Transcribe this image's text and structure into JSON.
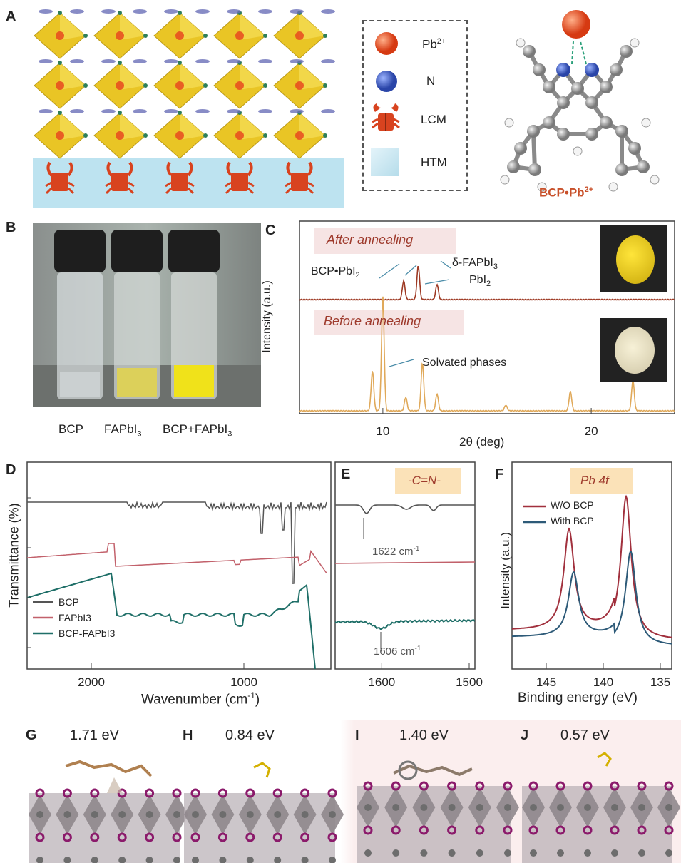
{
  "panels": {
    "A": "A",
    "B": "B",
    "C": "C",
    "D": "D",
    "E": "E",
    "F": "F",
    "G": "G",
    "H": "H",
    "I": "I",
    "J": "J"
  },
  "panelA": {
    "legend": [
      "Pb",
      "N",
      "LCM",
      "HTM"
    ],
    "pb_sup": "2+",
    "complex_label": "BCP•Pb",
    "complex_sup": "2+",
    "colors": {
      "pb": "#e8491e",
      "n": "#3a5bb8",
      "octahedra": "#e8c21a",
      "htm": "#bde3f0",
      "crab": "#d8431f"
    }
  },
  "panelB": {
    "vial_labels": [
      "BCP",
      "FAPbI",
      "BCP+FAPbI"
    ],
    "vial_sub": "3",
    "colors": {
      "clear": "#d9dee0",
      "faint_yellow": "#e3d44a",
      "yellow": "#f0e21a"
    }
  },
  "panelC": {
    "top_tag": "After annealing",
    "bottom_tag": "Before annealing",
    "ann_bcp": "BCP•PbI",
    "ann_bcp_sub": "2",
    "ann_delta": "δ-FAPbI",
    "ann_delta_sub": "3",
    "ann_pbi": "PbI",
    "ann_pbi_sub": "2",
    "ann_solv": "Solvated phases",
    "ylabel": "Intensity (a.u.)",
    "xlabel": "2θ (deg)",
    "xticks": [
      "10",
      "20"
    ]
  },
  "chart_data": [
    {
      "type": "line",
      "panel": "C",
      "xlabel": "2θ (deg)",
      "ylabel": "Intensity (a.u.)",
      "xlim": [
        6.0,
        24.0
      ],
      "series": [
        {
          "name": "After annealing",
          "color": "#9e3a24",
          "peaks": [
            [
              11.0,
              0.55
            ],
            [
              11.7,
              1.0
            ],
            [
              12.6,
              0.45
            ]
          ]
        },
        {
          "name": "Before annealing",
          "color": "#e0a95a",
          "peaks": [
            [
              9.5,
              0.35
            ],
            [
              10.0,
              1.0
            ],
            [
              11.1,
              0.12
            ],
            [
              11.9,
              0.42
            ],
            [
              12.6,
              0.15
            ],
            [
              15.9,
              0.05
            ],
            [
              19.0,
              0.17
            ],
            [
              22.0,
              0.27
            ]
          ]
        }
      ]
    },
    {
      "type": "line",
      "panel": "D",
      "xlabel": "Wavenumber (cm-1)",
      "ylabel": "Transmittance (%)",
      "xticks": [
        "2000",
        "1000"
      ],
      "series": [
        {
          "name": "BCP",
          "color": "#555555"
        },
        {
          "name": "FAPbI3",
          "color": "#c2616b"
        },
        {
          "name": "BCP-FAPbI3",
          "color": "#1f6f68"
        }
      ]
    },
    {
      "type": "line",
      "panel": "E",
      "xlim": [
        1650,
        1500
      ],
      "xticks": [
        "1600",
        "1500"
      ],
      "annotations": [
        "1622 cm-1",
        "1606 cm-1"
      ]
    },
    {
      "type": "line",
      "panel": "F",
      "xlabel": "Binding energy (eV)",
      "ylabel": "Intensity (a.u.)",
      "xticks": [
        "145",
        "140",
        "135"
      ],
      "series": [
        {
          "name": "W/O BCP",
          "color": "#a1303d",
          "peaks": [
            [
              143.0,
              0.7
            ],
            [
              138.0,
              1.0
            ]
          ]
        },
        {
          "name": "With BCP",
          "color": "#2d5a78",
          "peaks": [
            [
              142.6,
              0.45
            ],
            [
              137.6,
              0.66
            ]
          ]
        }
      ]
    }
  ],
  "panelD": {
    "ylabel": "Transmittance (%)",
    "xlabel_main": "Wavenumber (cm",
    "xlabel_sup": "-1",
    "xlabel_end": ")",
    "legend": [
      "BCP",
      "FAPbI3",
      "BCP-FAPbI3"
    ],
    "xticks": [
      "2000",
      "1000"
    ]
  },
  "panelE": {
    "tag": "-C=N-",
    "ann1": "1622 cm",
    "ann2": "1606 cm",
    "ann_sup": "-1",
    "xticks": [
      "1600",
      "1500"
    ]
  },
  "panelF": {
    "tag": "Pb 4f",
    "ylabel": "Intensity (a.u.)",
    "xlabel": "Binding energy (eV)",
    "legend": [
      "W/O BCP",
      "With BCP"
    ],
    "xticks": [
      "145",
      "140",
      "135"
    ]
  },
  "bottom": {
    "energies": [
      "1.71 eV",
      "0.84 eV",
      "1.40 eV",
      "0.57 eV"
    ]
  }
}
